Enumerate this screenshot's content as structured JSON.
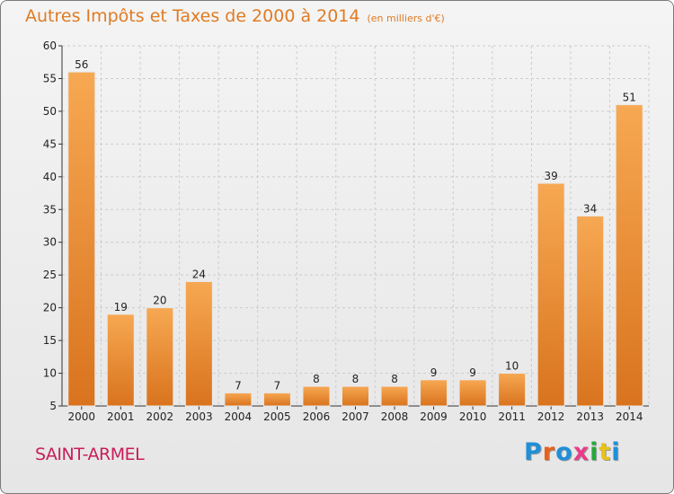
{
  "header": {
    "title": "Autres Impôts et Taxes de 2000 à 2014",
    "subtitle": "(en milliers d'€)"
  },
  "footer": {
    "place": "SAINT-ARMEL",
    "logo_text": "Proxiti",
    "logo_colors": [
      "#1f8fd8",
      "#e8611a",
      "#1f8fd8",
      "#e83c8a",
      "#29a83c",
      "#e8c21a",
      "#1f8fd8"
    ]
  },
  "colors": {
    "bar_light": "#f7a852",
    "bar_dark": "#d9731e",
    "title": "#e07b23",
    "place": "#c81e5a",
    "grid": "#cccccc"
  },
  "chart_data": {
    "type": "bar",
    "title": "Autres Impôts et Taxes de 2000 à 2014",
    "subtitle": "(en milliers d'€)",
    "categories": [
      "2000",
      "2001",
      "2002",
      "2003",
      "2004",
      "2005",
      "2006",
      "2007",
      "2008",
      "2009",
      "2010",
      "2011",
      "2012",
      "2013",
      "2014"
    ],
    "values": [
      56,
      19,
      20,
      24,
      7,
      7,
      8,
      8,
      8,
      9,
      9,
      10,
      39,
      34,
      51
    ],
    "ylim": [
      5,
      60
    ],
    "yticks": [
      5,
      10,
      15,
      20,
      25,
      30,
      35,
      40,
      45,
      50,
      55,
      60
    ],
    "grid": true,
    "xlabel": "",
    "ylabel": ""
  }
}
